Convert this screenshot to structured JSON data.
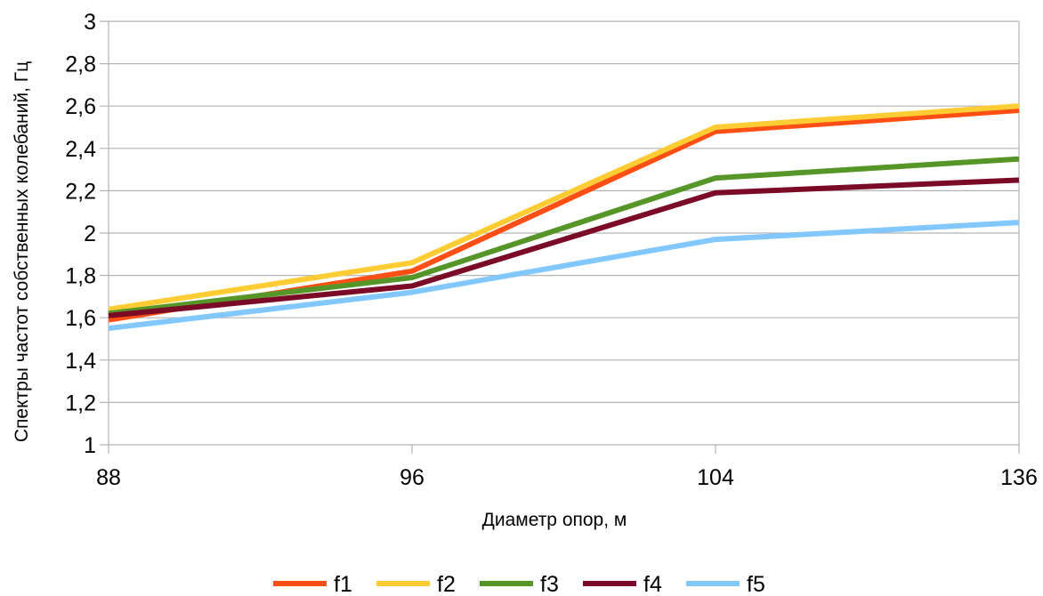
{
  "chart_data": {
    "type": "line",
    "title": "",
    "xlabel": "Диаметр опор, м",
    "ylabel": "Спектры частот собственных колебаний, Гц",
    "categories": [
      "88",
      "96",
      "104",
      "136"
    ],
    "y_ticks": [
      "1",
      "1,2",
      "1,4",
      "1,6",
      "1,8",
      "2",
      "2,2",
      "2,4",
      "2,6",
      "2,8",
      "3"
    ],
    "ylim": [
      1,
      3
    ],
    "grid": "horizontal",
    "legend_position": "bottom",
    "series": [
      {
        "name": "f1",
        "color": "#ff4f14",
        "values": [
          1.59,
          1.82,
          2.48,
          2.58
        ]
      },
      {
        "name": "f2",
        "color": "#ffcc33",
        "values": [
          1.64,
          1.86,
          2.5,
          2.6
        ]
      },
      {
        "name": "f3",
        "color": "#569628",
        "values": [
          1.62,
          1.79,
          2.26,
          2.35
        ]
      },
      {
        "name": "f4",
        "color": "#7a0a26",
        "values": [
          1.61,
          1.75,
          2.19,
          2.25
        ]
      },
      {
        "name": "f5",
        "color": "#82c8ff",
        "values": [
          1.55,
          1.72,
          1.97,
          2.05
        ]
      }
    ]
  }
}
